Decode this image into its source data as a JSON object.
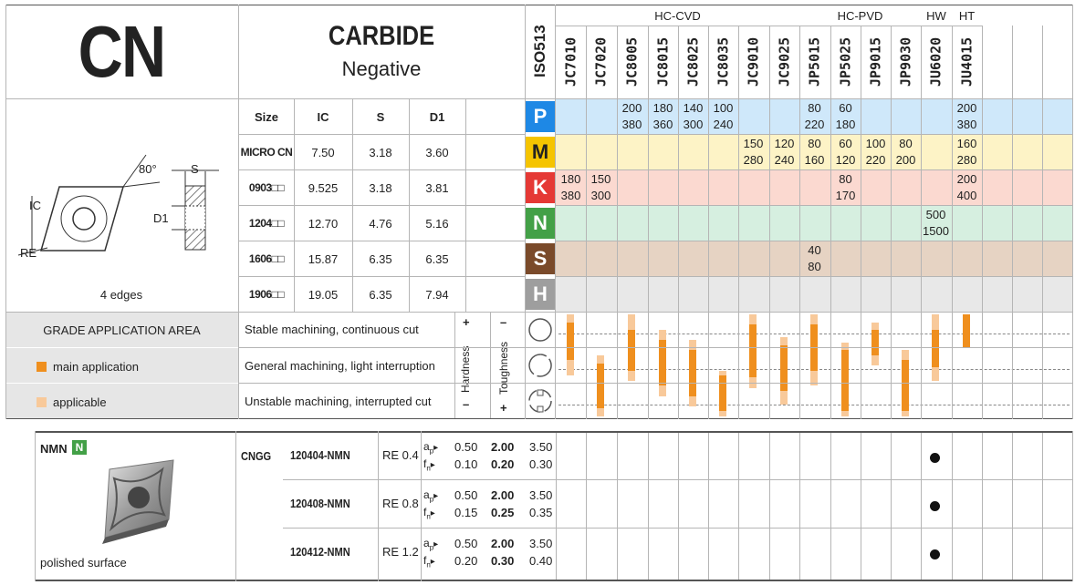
{
  "header": {
    "code": "CN",
    "material": "CARBIDE",
    "type": "Negative",
    "iso": "ISO513"
  },
  "groups": [
    "HC-CVD",
    "HC-PVD",
    "HW",
    "HT"
  ],
  "grades": [
    "JC7010",
    "JC7020",
    "JC8005",
    "JC8015",
    "JC8025",
    "JC8035",
    "JC9010",
    "JC9025",
    "JP5015",
    "JP5025",
    "JP9015",
    "JP9030",
    "JU6020",
    "JU4015"
  ],
  "size_table": {
    "headers": [
      "Size",
      "IC",
      "S",
      "D1"
    ],
    "rows": [
      [
        "MICRO CN",
        "7.50",
        "3.18",
        "3.60"
      ],
      [
        "0903□□",
        "9.525",
        "3.18",
        "3.81"
      ],
      [
        "1204□□",
        "12.70",
        "4.76",
        "5.16"
      ],
      [
        "1606□□",
        "15.87",
        "6.35",
        "6.35"
      ],
      [
        "1906□□",
        "19.05",
        "6.35",
        "7.94"
      ]
    ]
  },
  "drawing": {
    "angle": "80°",
    "s": "S",
    "ic": "IC",
    "d1": "D1",
    "re": "RE",
    "edges": "4 edges"
  },
  "iso_letters": [
    "P",
    "M",
    "K",
    "N",
    "S",
    "H"
  ],
  "colors": {
    "P": "#1e88e5",
    "M": "#f5c400",
    "K": "#e53935",
    "N": "#43a047",
    "S": "#7a4a2a",
    "H": "#9e9e9e",
    "P_band": "#cfe8fa",
    "M_band": "#fdf3c6",
    "K_band": "#fbd9d0",
    "N_band": "#d6efe0",
    "S_band": "#e6d3c3",
    "H_band": "#e8e8e8",
    "main": "#ef8f1e",
    "applicable": "#f8c99a"
  },
  "speeds": {
    "P": [
      [
        "",
        ""
      ],
      [
        "",
        ""
      ],
      [
        "200",
        "380"
      ],
      [
        "180",
        "360"
      ],
      [
        "140",
        "300"
      ],
      [
        "100",
        "240"
      ],
      [
        "",
        ""
      ],
      [
        "",
        ""
      ],
      [
        "80",
        "220"
      ],
      [
        "60",
        "180"
      ],
      [
        "",
        ""
      ],
      [
        "",
        ""
      ],
      [
        "",
        ""
      ],
      [
        "200",
        "380"
      ]
    ],
    "M": [
      [
        "",
        ""
      ],
      [
        "",
        ""
      ],
      [
        "",
        ""
      ],
      [
        "",
        ""
      ],
      [
        "",
        ""
      ],
      [
        "",
        ""
      ],
      [
        "150",
        "280"
      ],
      [
        "120",
        "240"
      ],
      [
        "80",
        "160"
      ],
      [
        "60",
        "120"
      ],
      [
        "100",
        "220"
      ],
      [
        "80",
        "200"
      ],
      [
        "",
        ""
      ],
      [
        "160",
        "280"
      ]
    ],
    "K": [
      [
        "180",
        "380"
      ],
      [
        "150",
        "300"
      ],
      [
        "",
        ""
      ],
      [
        "",
        ""
      ],
      [
        "",
        ""
      ],
      [
        "",
        ""
      ],
      [
        "",
        ""
      ],
      [
        "",
        ""
      ],
      [
        "",
        ""
      ],
      [
        "80",
        "170"
      ],
      [
        "",
        ""
      ],
      [
        "",
        ""
      ],
      [
        "",
        ""
      ],
      [
        "200",
        "400"
      ]
    ],
    "N": [
      [
        "",
        ""
      ],
      [
        "",
        ""
      ],
      [
        "",
        ""
      ],
      [
        "",
        ""
      ],
      [
        "",
        ""
      ],
      [
        "",
        ""
      ],
      [
        "",
        ""
      ],
      [
        "",
        ""
      ],
      [
        "",
        ""
      ],
      [
        "",
        ""
      ],
      [
        "",
        ""
      ],
      [
        "",
        ""
      ],
      [
        "500",
        "1500"
      ],
      [
        "",
        ""
      ]
    ],
    "S": [
      [
        "",
        ""
      ],
      [
        "",
        ""
      ],
      [
        "",
        ""
      ],
      [
        "",
        ""
      ],
      [
        "",
        ""
      ],
      [
        "",
        ""
      ],
      [
        "",
        ""
      ],
      [
        "",
        ""
      ],
      [
        "40",
        "80"
      ],
      [
        "",
        ""
      ],
      [
        "",
        ""
      ],
      [
        "",
        ""
      ],
      [
        "",
        ""
      ],
      [
        "",
        ""
      ]
    ]
  },
  "application": {
    "title": "GRADE APPLICATION AREA",
    "main": "main application",
    "applicable": "applicable",
    "conditions": [
      "Stable machining, continuous cut",
      "General machining, light interruption",
      "Unstable machining, interrupted cut"
    ],
    "hardness": "Hardness",
    "toughness": "Toughness",
    "plus": "+",
    "minus": "–"
  },
  "grade_ranges": [
    {
      "main": [
        0.08,
        0.45
      ],
      "app": [
        0.0,
        0.6
      ]
    },
    {
      "main": [
        0.48,
        0.92
      ],
      "app": [
        0.4,
        1.0
      ]
    },
    {
      "main": [
        0.15,
        0.55
      ],
      "app": [
        0.0,
        0.65
      ]
    },
    {
      "main": [
        0.25,
        0.7
      ],
      "app": [
        0.15,
        0.8
      ]
    },
    {
      "main": [
        0.35,
        0.8
      ],
      "app": [
        0.25,
        0.9
      ]
    },
    {
      "main": [
        0.6,
        0.95
      ],
      "app": [
        0.55,
        1.0
      ]
    },
    {
      "main": [
        0.1,
        0.62
      ],
      "app": [
        0.0,
        0.72
      ]
    },
    {
      "main": [
        0.3,
        0.75
      ],
      "app": [
        0.22,
        0.88
      ]
    },
    {
      "main": [
        0.1,
        0.55
      ],
      "app": [
        0.0,
        0.7
      ]
    },
    {
      "main": [
        0.35,
        0.95
      ],
      "app": [
        0.28,
        1.0
      ]
    },
    {
      "main": [
        0.15,
        0.4
      ],
      "app": [
        0.08,
        0.5
      ]
    },
    {
      "main": [
        0.45,
        0.95
      ],
      "app": [
        0.35,
        1.0
      ]
    },
    {
      "main": [
        0.15,
        0.52
      ],
      "app": [
        0.0,
        0.65
      ]
    },
    {
      "main": [
        0.0,
        0.33
      ],
      "app": [
        0.0,
        0.33
      ]
    }
  ],
  "product": {
    "chipbreaker": "NMN",
    "badge": "N",
    "note": "polished surface",
    "family": "CNGG",
    "rows": [
      {
        "code": "120404-NMN",
        "re": "RE 0.4",
        "ap": [
          "0.50",
          "2.00",
          "3.50"
        ],
        "fn": [
          "0.10",
          "0.20",
          "0.30"
        ]
      },
      {
        "code": "120408-NMN",
        "re": "RE 0.8",
        "ap": [
          "0.50",
          "2.00",
          "3.50"
        ],
        "fn": [
          "0.15",
          "0.25",
          "0.35"
        ]
      },
      {
        "code": "120412-NMN",
        "re": "RE 1.2",
        "ap": [
          "0.50",
          "2.00",
          "3.50"
        ],
        "fn": [
          "0.20",
          "0.30",
          "0.40"
        ]
      }
    ],
    "ap_label": "a",
    "ap_sub": "p",
    "fn_label": "f",
    "fn_sub": "n",
    "arrow": "▸",
    "stock_grade": "JU6020"
  }
}
